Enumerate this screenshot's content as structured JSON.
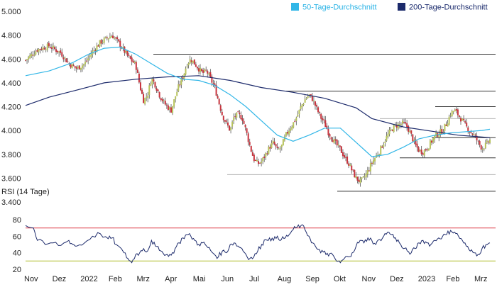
{
  "colors": {
    "ma50": "#31b6e7",
    "ma200": "#1c2a6b",
    "up": "#b7c35a",
    "down": "#c8333d",
    "wick": "#555555",
    "rsi": "#1c2a6b",
    "rsi_upper": "#e0515a",
    "rsi_lower": "#b8c440",
    "level": "#333333",
    "grid_text": "#222222"
  },
  "legend": {
    "ma50_label": "50-Tage-Durchschnitt",
    "ma200_label": "200-Tage-Durchschnitt"
  },
  "rsi_title": "RSI (14 Tage)",
  "chart_data": [
    {
      "type": "candlestick",
      "title": "",
      "y_ticks": [
        "5.000",
        "4.800",
        "4.600",
        "4.400",
        "4.200",
        "4.000",
        "3.800",
        "3.600",
        "3.400"
      ],
      "ylim": [
        3400,
        5000
      ],
      "x_ticks": [
        "Nov",
        "Dez",
        "2022",
        "Feb",
        "Mrz",
        "Apr",
        "Mai",
        "Jun",
        "Jul",
        "Aug",
        "Sep",
        "Okt",
        "Nov",
        "Dez",
        "2023",
        "Feb",
        "Mrz"
      ],
      "series_names": [
        "50-Tage-Durchschnitt",
        "200-Tage-Durchschnitt"
      ],
      "close_path": [
        [
          0,
          4590
        ],
        [
          3,
          4680
        ],
        [
          6,
          4710
        ],
        [
          9,
          4650
        ],
        [
          11,
          4560
        ],
        [
          13,
          4520
        ],
        [
          15,
          4560
        ],
        [
          17,
          4660
        ],
        [
          19,
          4740
        ],
        [
          21,
          4780
        ],
        [
          22,
          4800
        ],
        [
          24,
          4720
        ],
        [
          26,
          4620
        ],
        [
          28,
          4550
        ],
        [
          29,
          4380
        ],
        [
          30,
          4250
        ],
        [
          31,
          4300
        ],
        [
          32,
          4440
        ],
        [
          33,
          4380
        ],
        [
          34,
          4300
        ],
        [
          35,
          4240
        ],
        [
          36,
          4200
        ],
        [
          37,
          4170
        ],
        [
          38,
          4280
        ],
        [
          39,
          4380
        ],
        [
          40,
          4450
        ],
        [
          41,
          4560
        ],
        [
          42,
          4600
        ],
        [
          43,
          4560
        ],
        [
          44,
          4520
        ],
        [
          45,
          4480
        ],
        [
          46,
          4500
        ],
        [
          47,
          4430
        ],
        [
          48,
          4370
        ],
        [
          49,
          4250
        ],
        [
          50,
          4130
        ],
        [
          51,
          4060
        ],
        [
          52,
          4000
        ],
        [
          53,
          4120
        ],
        [
          54,
          4130
        ],
        [
          55,
          4110
        ],
        [
          56,
          4000
        ],
        [
          57,
          3870
        ],
        [
          58,
          3760
        ],
        [
          59,
          3720
        ],
        [
          60,
          3740
        ],
        [
          61,
          3800
        ],
        [
          62,
          3860
        ],
        [
          63,
          3900
        ],
        [
          64,
          3830
        ],
        [
          65,
          3860
        ],
        [
          66,
          3950
        ],
        [
          67,
          4010
        ],
        [
          68,
          4060
        ],
        [
          69,
          4120
        ],
        [
          70,
          4200
        ],
        [
          71,
          4260
        ],
        [
          72,
          4300
        ],
        [
          73,
          4260
        ],
        [
          74,
          4180
        ],
        [
          75,
          4110
        ],
        [
          76,
          4060
        ],
        [
          77,
          3980
        ],
        [
          78,
          3930
        ],
        [
          79,
          3880
        ],
        [
          80,
          3840
        ],
        [
          81,
          3780
        ],
        [
          82,
          3730
        ],
        [
          83,
          3660
        ],
        [
          84,
          3600
        ],
        [
          85,
          3570
        ],
        [
          86,
          3600
        ],
        [
          87,
          3660
        ],
        [
          88,
          3730
        ],
        [
          89,
          3780
        ],
        [
          90,
          3830
        ],
        [
          91,
          3900
        ],
        [
          92,
          3960
        ],
        [
          93,
          4010
        ],
        [
          94,
          4040
        ],
        [
          95,
          4050
        ],
        [
          96,
          4060
        ],
        [
          97,
          4030
        ],
        [
          98,
          3960
        ],
        [
          99,
          3880
        ],
        [
          100,
          3830
        ],
        [
          101,
          3820
        ],
        [
          102,
          3850
        ],
        [
          103,
          3900
        ],
        [
          104,
          3950
        ],
        [
          105,
          3980
        ],
        [
          106,
          4000
        ],
        [
          107,
          4060
        ],
        [
          108,
          4140
        ],
        [
          109,
          4170
        ],
        [
          110,
          4130
        ],
        [
          111,
          4080
        ],
        [
          112,
          4030
        ],
        [
          113,
          3990
        ],
        [
          114,
          3960
        ],
        [
          115,
          3900
        ],
        [
          116,
          3850
        ],
        [
          117,
          3880
        ],
        [
          118,
          3920
        ]
      ],
      "ma50": [
        [
          0,
          4460
        ],
        [
          6,
          4500
        ],
        [
          12,
          4570
        ],
        [
          16,
          4640
        ],
        [
          20,
          4690
        ],
        [
          24,
          4700
        ],
        [
          28,
          4640
        ],
        [
          32,
          4560
        ],
        [
          36,
          4480
        ],
        [
          40,
          4430
        ],
        [
          44,
          4420
        ],
        [
          48,
          4380
        ],
        [
          52,
          4300
        ],
        [
          56,
          4200
        ],
        [
          60,
          4080
        ],
        [
          64,
          3960
        ],
        [
          68,
          3910
        ],
        [
          72,
          3960
        ],
        [
          76,
          4020
        ],
        [
          80,
          4020
        ],
        [
          84,
          3900
        ],
        [
          88,
          3780
        ],
        [
          92,
          3800
        ],
        [
          96,
          3860
        ],
        [
          100,
          3930
        ],
        [
          104,
          3960
        ],
        [
          108,
          3980
        ],
        [
          112,
          3990
        ],
        [
          116,
          4000
        ],
        [
          118,
          4010
        ]
      ],
      "ma200": [
        [
          0,
          4210
        ],
        [
          6,
          4280
        ],
        [
          12,
          4330
        ],
        [
          20,
          4400
        ],
        [
          28,
          4430
        ],
        [
          36,
          4450
        ],
        [
          44,
          4460
        ],
        [
          52,
          4420
        ],
        [
          60,
          4360
        ],
        [
          68,
          4320
        ],
        [
          76,
          4270
        ],
        [
          84,
          4190
        ],
        [
          88,
          4100
        ],
        [
          96,
          4030
        ],
        [
          104,
          3990
        ],
        [
          110,
          3960
        ],
        [
          114,
          3950
        ],
        [
          118,
          3940
        ]
      ],
      "levels": [
        4640,
        4330,
        4200,
        4100,
        3940,
        3770,
        3630,
        3490
      ]
    },
    {
      "type": "line",
      "title": "RSI (14 Tage)",
      "y_ticks": [
        "80",
        "60",
        "40",
        "20"
      ],
      "ylim": [
        20,
        80
      ],
      "reference_lines": [
        70,
        30
      ],
      "values": [
        [
          0,
          73
        ],
        [
          2,
          70
        ],
        [
          3,
          55
        ],
        [
          5,
          50
        ],
        [
          7,
          52
        ],
        [
          9,
          49
        ],
        [
          11,
          55
        ],
        [
          12,
          50
        ],
        [
          13,
          48
        ],
        [
          15,
          52
        ],
        [
          17,
          60
        ],
        [
          19,
          63
        ],
        [
          21,
          57
        ],
        [
          22,
          58
        ],
        [
          23,
          50
        ],
        [
          25,
          40
        ],
        [
          26,
          33
        ],
        [
          27,
          28
        ],
        [
          28,
          38
        ],
        [
          29,
          40
        ],
        [
          30,
          45
        ],
        [
          31,
          42
        ],
        [
          32,
          55
        ],
        [
          33,
          48
        ],
        [
          34,
          43
        ],
        [
          36,
          38
        ],
        [
          37,
          37
        ],
        [
          38,
          45
        ],
        [
          39,
          52
        ],
        [
          40,
          58
        ],
        [
          41,
          62
        ],
        [
          42,
          60
        ],
        [
          43,
          55
        ],
        [
          44,
          50
        ],
        [
          45,
          52
        ],
        [
          46,
          48
        ],
        [
          47,
          43
        ],
        [
          48,
          38
        ],
        [
          49,
          35
        ],
        [
          50,
          42
        ],
        [
          51,
          40
        ],
        [
          52,
          50
        ],
        [
          53,
          52
        ],
        [
          54,
          48
        ],
        [
          55,
          45
        ],
        [
          56,
          38
        ],
        [
          57,
          33
        ],
        [
          58,
          35
        ],
        [
          59,
          42
        ],
        [
          60,
          50
        ],
        [
          61,
          56
        ],
        [
          62,
          58
        ],
        [
          63,
          55
        ],
        [
          64,
          60
        ],
        [
          65,
          56
        ],
        [
          66,
          58
        ],
        [
          67,
          62
        ],
        [
          68,
          68
        ],
        [
          69,
          71
        ],
        [
          70,
          73
        ],
        [
          71,
          68
        ],
        [
          72,
          60
        ],
        [
          73,
          52
        ],
        [
          74,
          45
        ],
        [
          75,
          40
        ],
        [
          76,
          42
        ],
        [
          77,
          36
        ],
        [
          78,
          38
        ],
        [
          79,
          30
        ],
        [
          80,
          28
        ],
        [
          81,
          33
        ],
        [
          82,
          35
        ],
        [
          83,
          40
        ],
        [
          84,
          48
        ],
        [
          85,
          55
        ],
        [
          86,
          52
        ],
        [
          87,
          58
        ],
        [
          88,
          55
        ],
        [
          89,
          50
        ],
        [
          90,
          56
        ],
        [
          91,
          60
        ],
        [
          92,
          65
        ],
        [
          93,
          62
        ],
        [
          94,
          58
        ],
        [
          95,
          52
        ],
        [
          96,
          45
        ],
        [
          97,
          42
        ],
        [
          98,
          40
        ],
        [
          99,
          45
        ],
        [
          100,
          52
        ],
        [
          101,
          55
        ],
        [
          102,
          52
        ],
        [
          103,
          50
        ],
        [
          104,
          55
        ],
        [
          105,
          58
        ],
        [
          106,
          60
        ],
        [
          107,
          62
        ],
        [
          108,
          67
        ],
        [
          109,
          65
        ],
        [
          110,
          60
        ],
        [
          111,
          55
        ],
        [
          112,
          48
        ],
        [
          113,
          42
        ],
        [
          114,
          40
        ],
        [
          115,
          38
        ],
        [
          116,
          45
        ],
        [
          117,
          50
        ],
        [
          118,
          52
        ]
      ]
    }
  ]
}
